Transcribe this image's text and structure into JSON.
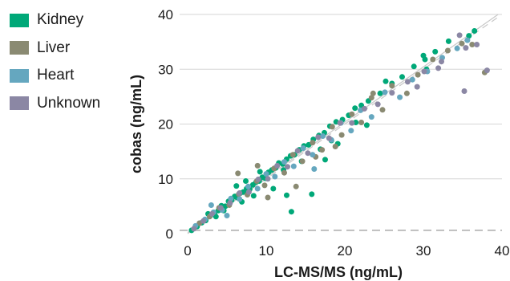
{
  "chart_data": {
    "type": "scatter",
    "xlabel": "LC-MS/MS (ng/mL)",
    "ylabel": "cobas (ng/mL)",
    "xlim": [
      0,
      40
    ],
    "ylim": [
      0,
      40
    ],
    "xticks": [
      "0",
      "10",
      "20",
      "30",
      "40"
    ],
    "yticks": [
      "0",
      "10",
      "20",
      "30",
      "40"
    ],
    "grid": true,
    "legend_position": "top-left",
    "reference_lines": [
      {
        "style": "solid",
        "color": "#c8c8c8",
        "slope": 1.05,
        "intercept": 0.2
      },
      {
        "style": "dashed",
        "color": "#c8c8c8",
        "slope": 1.0,
        "intercept": 0
      }
    ],
    "baseline": {
      "style": "dashed",
      "color": "#9a9a9a",
      "y": 0.6
    },
    "series": [
      {
        "name": "Kidney",
        "color": "#00a878",
        "points": [
          [
            0.5,
            0.6
          ],
          [
            1.2,
            1.3
          ],
          [
            1.8,
            2.0
          ],
          [
            2.3,
            2.4
          ],
          [
            2.9,
            3.3
          ],
          [
            3.4,
            3.7
          ],
          [
            3.9,
            4.2
          ],
          [
            4.3,
            5.1
          ],
          [
            4.8,
            5.0
          ],
          [
            5.2,
            5.9
          ],
          [
            5.6,
            6.1
          ],
          [
            6.0,
            6.8
          ],
          [
            6.3,
            6.6
          ],
          [
            6.7,
            7.4
          ],
          [
            7.1,
            7.6
          ],
          [
            7.5,
            8.2
          ],
          [
            7.9,
            8.1
          ],
          [
            8.3,
            8.9
          ],
          [
            8.7,
            9.4
          ],
          [
            9.1,
            9.6
          ],
          [
            9.5,
            10.3
          ],
          [
            9.9,
            10.1
          ],
          [
            10.3,
            11.2
          ],
          [
            10.7,
            11.6
          ],
          [
            11.2,
            12.0
          ],
          [
            11.6,
            12.9
          ],
          [
            12.1,
            12.7
          ],
          [
            12.6,
            13.6
          ],
          [
            13.1,
            14.2
          ],
          [
            13.6,
            14.4
          ],
          [
            14.2,
            15.3
          ],
          [
            14.8,
            16.0
          ],
          [
            15.4,
            16.2
          ],
          [
            16.0,
            17.2
          ],
          [
            16.7,
            17.9
          ],
          [
            17.4,
            18.4
          ],
          [
            18.1,
            19.6
          ],
          [
            18.9,
            20.4
          ],
          [
            19.7,
            20.8
          ],
          [
            20.5,
            21.6
          ],
          [
            21.3,
            22.9
          ],
          [
            22.1,
            23.4
          ],
          [
            23.0,
            24.2
          ],
          [
            24.5,
            25.6
          ],
          [
            26.0,
            27.4
          ],
          [
            27.3,
            28.6
          ],
          [
            28.8,
            30.5
          ],
          [
            30.2,
            31.8
          ],
          [
            31.5,
            33.2
          ],
          [
            33.2,
            35.1
          ],
          [
            35.8,
            36.1
          ],
          [
            36.5,
            37.0
          ],
          [
            30.0,
            32.5
          ],
          [
            30.4,
            30.0
          ],
          [
            25.2,
            27.8
          ],
          [
            22.8,
            19.8
          ],
          [
            17.5,
            13.5
          ],
          [
            12.6,
            7.0
          ],
          [
            15.8,
            7.2
          ],
          [
            13.2,
            4.0
          ],
          [
            4.6,
            4.2
          ],
          [
            6.9,
            5.8
          ],
          [
            8.4,
            6.9
          ],
          [
            10.9,
            8.2
          ],
          [
            12.2,
            11.6
          ],
          [
            6.2,
            8.7
          ],
          [
            7.4,
            9.6
          ],
          [
            9.2,
            11.3
          ],
          [
            2.6,
            3.6
          ],
          [
            3.6,
            3.1
          ],
          [
            19.1,
            16.4
          ],
          [
            21.4,
            20.3
          ],
          [
            16.9,
            15.4
          ],
          [
            14.5,
            13.2
          ],
          [
            18.3,
            17.0
          ]
        ]
      },
      {
        "name": "Liver",
        "color": "#8a8a72",
        "points": [
          [
            1.5,
            1.9
          ],
          [
            2.8,
            3.1
          ],
          [
            4.0,
            4.7
          ],
          [
            5.3,
            5.2
          ],
          [
            6.5,
            7.2
          ],
          [
            7.6,
            7.1
          ],
          [
            8.8,
            9.6
          ],
          [
            9.8,
            8.8
          ],
          [
            11.0,
            11.9
          ],
          [
            12.3,
            11.1
          ],
          [
            13.4,
            14.4
          ],
          [
            14.6,
            13.2
          ],
          [
            15.9,
            16.6
          ],
          [
            17.1,
            15.3
          ],
          [
            18.4,
            19.5
          ],
          [
            19.6,
            18.0
          ],
          [
            20.9,
            21.8
          ],
          [
            22.1,
            20.3
          ],
          [
            23.4,
            24.8
          ],
          [
            24.8,
            22.6
          ],
          [
            26.0,
            27.0
          ],
          [
            27.9,
            25.6
          ],
          [
            29.3,
            29.0
          ],
          [
            31.2,
            31.8
          ],
          [
            33.1,
            33.4
          ],
          [
            34.9,
            34.7
          ],
          [
            36.2,
            34.5
          ],
          [
            37.8,
            29.4
          ],
          [
            23.6,
            25.6
          ],
          [
            13.8,
            8.6
          ],
          [
            6.4,
            11.0
          ],
          [
            8.9,
            12.4
          ],
          [
            10.2,
            6.6
          ],
          [
            16.3,
            14.0
          ],
          [
            18.8,
            15.9
          ]
        ]
      },
      {
        "name": "Heart",
        "color": "#65a7bf",
        "points": [
          [
            1.0,
            1.4
          ],
          [
            2.2,
            2.6
          ],
          [
            3.3,
            3.9
          ],
          [
            4.4,
            4.3
          ],
          [
            5.5,
            6.4
          ],
          [
            6.6,
            6.3
          ],
          [
            7.7,
            8.6
          ],
          [
            8.9,
            8.2
          ],
          [
            10.0,
            10.9
          ],
          [
            11.1,
            10.4
          ],
          [
            12.3,
            13.1
          ],
          [
            13.5,
            12.3
          ],
          [
            14.7,
            15.6
          ],
          [
            15.9,
            14.4
          ],
          [
            17.2,
            17.8
          ],
          [
            18.3,
            17.1
          ],
          [
            19.5,
            20.2
          ],
          [
            20.8,
            18.8
          ],
          [
            22.0,
            22.5
          ],
          [
            23.4,
            21.3
          ],
          [
            25.1,
            25.8
          ],
          [
            27.0,
            24.9
          ],
          [
            28.6,
            28.1
          ],
          [
            30.5,
            29.6
          ],
          [
            32.4,
            32.1
          ],
          [
            34.3,
            33.8
          ],
          [
            35.6,
            35.3
          ],
          [
            16.1,
            11.8
          ],
          [
            3.0,
            5.2
          ],
          [
            5.0,
            3.3
          ]
        ]
      },
      {
        "name": "Unknown",
        "color": "#8b87a4",
        "points": [
          [
            0.8,
            0.9
          ],
          [
            2.0,
            2.3
          ],
          [
            3.1,
            3.6
          ],
          [
            4.2,
            4.7
          ],
          [
            5.4,
            5.6
          ],
          [
            6.6,
            7.4
          ],
          [
            7.8,
            7.6
          ],
          [
            9.0,
            9.9
          ],
          [
            10.2,
            10.0
          ],
          [
            11.4,
            12.4
          ],
          [
            12.7,
            12.2
          ],
          [
            14.0,
            15.1
          ],
          [
            15.3,
            14.7
          ],
          [
            16.6,
            17.6
          ],
          [
            18.0,
            17.4
          ],
          [
            19.4,
            20.2
          ],
          [
            20.9,
            20.2
          ],
          [
            22.5,
            22.8
          ],
          [
            24.2,
            23.6
          ],
          [
            26.0,
            25.7
          ],
          [
            28.0,
            27.7
          ],
          [
            30.1,
            29.6
          ],
          [
            32.3,
            31.4
          ],
          [
            34.6,
            36.2
          ],
          [
            35.4,
            33.9
          ],
          [
            36.8,
            34.5
          ],
          [
            38.1,
            29.8
          ],
          [
            35.2,
            26.0
          ],
          [
            31.9,
            30.2
          ],
          [
            29.2,
            26.8
          ]
        ]
      }
    ]
  }
}
